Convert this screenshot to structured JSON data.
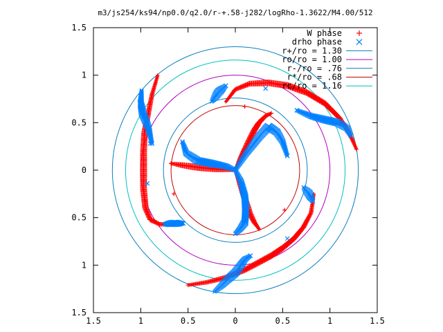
{
  "chart_data": {
    "type": "scatter",
    "title": "m3/js254/ks94/np0.0/q2.0/r-+.58-j282/logRho-1.3622/M4.00/512",
    "xlabel": "",
    "ylabel": "",
    "xlim": [
      -1.5,
      1.5
    ],
    "ylim": [
      -1.5,
      1.5
    ],
    "x_ticks": [
      -1.5,
      -1,
      -0.5,
      0,
      0.5,
      1,
      1.5
    ],
    "x_tick_labels": [
      "1.5",
      "1",
      "0.5",
      "0",
      "0.5",
      "1",
      "1.5"
    ],
    "y_ticks": [
      1.5,
      1,
      0.5,
      0,
      -0.5,
      -1,
      -1.5
    ],
    "y_tick_labels": [
      "1.5",
      "1",
      "0.5",
      "0",
      "0.5",
      "1",
      "1.5"
    ],
    "grid": false,
    "legend_position": "top-right",
    "legend": [
      {
        "label": "W phase",
        "marker": "plus",
        "color": "#ff0000"
      },
      {
        "label": "drho phase",
        "marker": "cross",
        "color": "#0080ff"
      },
      {
        "label": "r+/ro = 1.30",
        "marker": "line",
        "color": "#0a7fc0"
      },
      {
        "label": "ro/ro = 1.00",
        "marker": "line",
        "color": "#b000c0"
      },
      {
        "label": "r-/ro = .76",
        "marker": "line",
        "color": "#0a7fc0"
      },
      {
        "label": "r*/ro = .68",
        "marker": "line",
        "color": "#c00000"
      },
      {
        "label": "rc/ro = 1.16",
        "marker": "line",
        "color": "#00c0c0"
      }
    ],
    "circles": [
      {
        "name": "r+",
        "radius": 1.3,
        "color": "#0a7fc0"
      },
      {
        "name": "ro",
        "radius": 1.0,
        "color": "#b000c0"
      },
      {
        "name": "r-",
        "radius": 0.76,
        "color": "#0a7fc0"
      },
      {
        "name": "r*",
        "radius": 0.68,
        "color": "#c00000"
      },
      {
        "name": "rc",
        "radius": 1.16,
        "color": "#00c0c0"
      }
    ],
    "series": [
      {
        "name": "W phase",
        "color": "#ff0000",
        "marker": "plus",
        "curves": [
          [
            [
              0.0,
              0.0
            ],
            [
              0.05,
              0.12
            ],
            [
              0.1,
              0.22
            ],
            [
              0.15,
              0.32
            ],
            [
              0.2,
              0.42
            ],
            [
              0.25,
              0.5
            ],
            [
              0.32,
              0.57
            ],
            [
              0.38,
              0.6
            ]
          ],
          [
            [
              0.0,
              0.0
            ],
            [
              -0.2,
              0.01
            ],
            [
              -0.4,
              0.03
            ],
            [
              -0.55,
              0.05
            ],
            [
              -0.68,
              0.07
            ]
          ],
          [
            [
              0.0,
              0.0
            ],
            [
              0.05,
              -0.15
            ],
            [
              0.1,
              -0.3
            ],
            [
              0.15,
              -0.45
            ],
            [
              0.2,
              -0.55
            ],
            [
              0.25,
              -0.62
            ]
          ],
          [
            [
              -0.82,
              1.0
            ],
            [
              -0.88,
              0.8
            ],
            [
              -0.92,
              0.6
            ],
            [
              -0.96,
              0.4
            ],
            [
              -0.97,
              0.2
            ],
            [
              -0.97,
              0.0
            ],
            [
              -0.97,
              -0.2
            ],
            [
              -0.95,
              -0.4
            ],
            [
              -0.9,
              -0.52
            ],
            [
              -0.8,
              -0.57
            ],
            [
              -0.6,
              -0.57
            ]
          ],
          [
            [
              -0.1,
              0.72
            ],
            [
              0.0,
              0.85
            ],
            [
              0.15,
              0.91
            ],
            [
              0.35,
              0.92
            ],
            [
              0.55,
              0.89
            ],
            [
              0.75,
              0.82
            ],
            [
              0.95,
              0.7
            ],
            [
              1.1,
              0.55
            ],
            [
              1.2,
              0.4
            ],
            [
              1.28,
              0.22
            ]
          ],
          [
            [
              0.83,
              -0.25
            ],
            [
              0.8,
              -0.45
            ],
            [
              0.72,
              -0.6
            ],
            [
              0.62,
              -0.72
            ],
            [
              0.5,
              -0.82
            ],
            [
              0.38,
              -0.9
            ],
            [
              0.25,
              -0.97
            ],
            [
              0.1,
              -1.05
            ],
            [
              -0.1,
              -1.13
            ],
            [
              -0.3,
              -1.18
            ],
            [
              -0.5,
              -1.21
            ]
          ]
        ],
        "isolated_points": [
          [
            0.1,
            0.67
          ],
          [
            0.52,
            -0.42
          ],
          [
            -0.65,
            -0.25
          ],
          [
            -0.68,
            0.07
          ]
        ]
      },
      {
        "name": "drho phase",
        "color": "#0080ff",
        "marker": "cross",
        "curves": [
          [
            [
              0.0,
              0.0
            ],
            [
              -0.1,
              0.04
            ],
            [
              -0.25,
              0.07
            ],
            [
              -0.4,
              0.1
            ],
            [
              -0.52,
              0.18
            ],
            [
              -0.56,
              0.3
            ]
          ],
          [
            [
              0.0,
              0.0
            ],
            [
              0.12,
              0.18
            ],
            [
              0.25,
              0.35
            ],
            [
              0.35,
              0.46
            ],
            [
              0.44,
              0.4
            ],
            [
              0.5,
              0.3
            ],
            [
              0.55,
              0.15
            ]
          ],
          [
            [
              0.0,
              0.0
            ],
            [
              0.06,
              -0.12
            ],
            [
              0.1,
              -0.28
            ],
            [
              0.11,
              -0.42
            ],
            [
              0.1,
              -0.55
            ],
            [
              0.05,
              -0.62
            ],
            [
              0.0,
              -0.67
            ]
          ],
          [
            [
              -0.99,
              0.84
            ],
            [
              -1.0,
              0.7
            ],
            [
              -0.98,
              0.6
            ],
            [
              -0.92,
              0.45
            ],
            [
              -0.88,
              0.28
            ]
          ],
          [
            [
              -0.25,
              0.72
            ],
            [
              -0.18,
              0.82
            ],
            [
              -0.1,
              0.89
            ]
          ],
          [
            [
              0.65,
              0.63
            ],
            [
              0.8,
              0.57
            ],
            [
              0.95,
              0.53
            ],
            [
              1.08,
              0.5
            ],
            [
              1.18,
              0.44
            ],
            [
              1.22,
              0.36
            ]
          ],
          [
            [
              -0.75,
              -0.57
            ],
            [
              -0.65,
              -0.56
            ],
            [
              -0.55,
              -0.56
            ]
          ],
          [
            [
              0.72,
              -0.18
            ],
            [
              0.78,
              -0.25
            ],
            [
              0.82,
              -0.33
            ]
          ],
          [
            [
              -0.22,
              -1.28
            ],
            [
              -0.15,
              -1.22
            ],
            [
              -0.08,
              -1.15
            ],
            [
              0.0,
              -1.08
            ],
            [
              0.06,
              -1.0
            ],
            [
              0.1,
              -0.94
            ],
            [
              0.16,
              -0.9
            ]
          ]
        ],
        "isolated_points": [
          [
            -0.93,
            -0.14
          ],
          [
            0.65,
            0.63
          ],
          [
            0.32,
            0.86
          ],
          [
            0.55,
            -0.72
          ],
          [
            -0.9,
            0.28
          ]
        ]
      }
    ]
  }
}
